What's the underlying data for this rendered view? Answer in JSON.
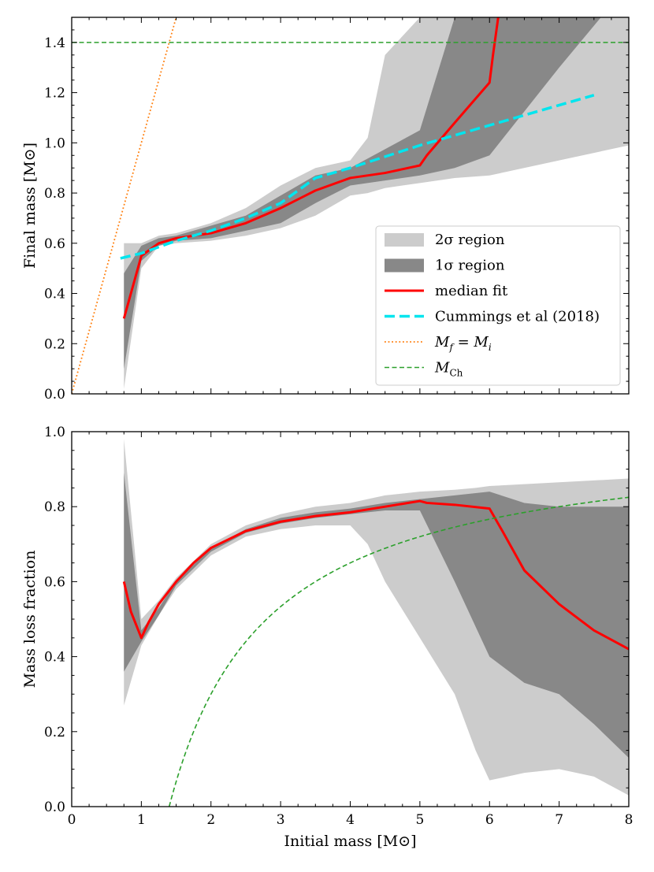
{
  "colors": {
    "band_2sigma": "#cccccc",
    "band_1sigma": "#888888",
    "median": "#ff0000",
    "cummings": "#00e5ee",
    "identity": "#ff7f0e",
    "chandrasekhar": "#2ca02c"
  },
  "legend": {
    "items": [
      {
        "key": "band_2sigma",
        "label": "2σ region"
      },
      {
        "key": "band_1sigma",
        "label": "1σ region"
      },
      {
        "key": "median",
        "label": "median fit"
      },
      {
        "key": "cummings",
        "label": "Cummings et al (2018)"
      },
      {
        "key": "identity",
        "label": "M",
        "sub": "f",
        "rest": " = M",
        "sub2": "i"
      },
      {
        "key": "chandrasekhar",
        "label": "M",
        "sub": "Ch"
      }
    ]
  },
  "chart_data": [
    {
      "type": "line",
      "panel": "top",
      "xlabel": "",
      "ylabel": "Final mass [M⊙]",
      "xlim": [
        0,
        8
      ],
      "ylim": [
        0,
        1.5
      ],
      "xticks": [
        0,
        1,
        2,
        3,
        4,
        5,
        6,
        7,
        8
      ],
      "yticks": [
        0.0,
        0.2,
        0.4,
        0.6,
        0.8,
        1.0,
        1.2,
        1.4
      ],
      "ytick_labels": [
        "0.0",
        "0.2",
        "0.4",
        "0.6",
        "0.8",
        "1.0",
        "1.2",
        "1.4"
      ],
      "series": [
        {
          "name": "2σ region",
          "kind": "band",
          "x": [
            0.75,
            1.0,
            1.25,
            1.5,
            2.0,
            2.5,
            3.0,
            3.5,
            4.0,
            4.25,
            4.5,
            5.0,
            5.5,
            6.0,
            7.0,
            8.0
          ],
          "lower": [
            0.02,
            0.5,
            0.59,
            0.6,
            0.61,
            0.63,
            0.66,
            0.71,
            0.79,
            0.8,
            0.82,
            0.84,
            0.86,
            0.87,
            0.93,
            0.99
          ],
          "upper": [
            0.6,
            0.6,
            0.63,
            0.64,
            0.68,
            0.74,
            0.83,
            0.9,
            0.93,
            1.02,
            1.35,
            1.5,
            1.5,
            1.5,
            1.5,
            1.5
          ]
        },
        {
          "name": "1σ region",
          "kind": "band",
          "x": [
            0.75,
            1.0,
            1.25,
            1.5,
            2.0,
            2.5,
            3.0,
            3.5,
            4.0,
            5.0,
            5.5,
            6.0,
            7.0,
            7.6
          ],
          "lower": [
            0.1,
            0.53,
            0.59,
            0.61,
            0.62,
            0.65,
            0.68,
            0.76,
            0.83,
            0.87,
            0.9,
            0.95,
            1.3,
            1.5
          ],
          "upper": [
            0.48,
            0.59,
            0.62,
            0.63,
            0.67,
            0.71,
            0.79,
            0.87,
            0.9,
            1.05,
            1.5,
            1.5,
            1.5,
            1.5
          ]
        },
        {
          "name": "median fit",
          "kind": "line",
          "x": [
            0.75,
            1.0,
            1.25,
            1.5,
            2.0,
            2.5,
            3.0,
            3.5,
            4.0,
            4.5,
            5.0,
            5.1,
            5.5,
            6.0,
            6.05,
            6.1,
            6.15
          ],
          "y": [
            0.3,
            0.55,
            0.6,
            0.62,
            0.64,
            0.68,
            0.74,
            0.81,
            0.86,
            0.88,
            0.91,
            0.95,
            1.08,
            1.24,
            1.35,
            1.45,
            1.55
          ]
        },
        {
          "name": "Cummings et al (2018)",
          "kind": "line",
          "x": [
            0.7,
            1.0,
            1.5,
            2.0,
            2.5,
            3.0,
            3.5,
            4.0,
            5.0,
            6.0,
            7.5
          ],
          "y": [
            0.54,
            0.56,
            0.61,
            0.65,
            0.7,
            0.76,
            0.86,
            0.9,
            0.99,
            1.07,
            1.19
          ]
        },
        {
          "name": "M_f = M_i",
          "kind": "line",
          "x": [
            0,
            1.5
          ],
          "y": [
            0,
            1.5
          ]
        },
        {
          "name": "M_Ch",
          "kind": "line",
          "x": [
            0,
            8
          ],
          "y": [
            1.4,
            1.4
          ]
        }
      ]
    },
    {
      "type": "line",
      "panel": "bottom",
      "xlabel": "Initial mass [M⊙]",
      "ylabel": "Mass loss fraction",
      "xlim": [
        0,
        8
      ],
      "ylim": [
        0,
        1.0
      ],
      "xticks": [
        0,
        1,
        2,
        3,
        4,
        5,
        6,
        7,
        8
      ],
      "yticks": [
        0.0,
        0.2,
        0.4,
        0.6,
        0.8,
        1.0
      ],
      "ytick_labels": [
        "0.0",
        "0.2",
        "0.4",
        "0.6",
        "0.8",
        "1.0"
      ],
      "series": [
        {
          "name": "2σ region",
          "kind": "band",
          "x": [
            0.75,
            1.0,
            1.25,
            1.5,
            2.0,
            2.5,
            3.0,
            3.5,
            4.0,
            4.25,
            4.5,
            5.0,
            5.5,
            5.8,
            6.0,
            6.5,
            7.0,
            7.5,
            8.0
          ],
          "lower": [
            0.27,
            0.43,
            0.51,
            0.58,
            0.67,
            0.72,
            0.74,
            0.75,
            0.75,
            0.7,
            0.6,
            0.45,
            0.3,
            0.15,
            0.07,
            0.09,
            0.1,
            0.08,
            0.03
          ],
          "upper": [
            0.98,
            0.5,
            0.55,
            0.61,
            0.7,
            0.75,
            0.78,
            0.8,
            0.81,
            0.82,
            0.83,
            0.84,
            0.845,
            0.85,
            0.855,
            0.86,
            0.865,
            0.87,
            0.875
          ]
        },
        {
          "name": "1σ region",
          "kind": "band",
          "x": [
            0.75,
            1.0,
            1.25,
            1.5,
            2.0,
            2.5,
            3.0,
            3.5,
            4.0,
            4.5,
            5.0,
            5.5,
            6.0,
            6.5,
            7.0,
            7.5,
            8.0
          ],
          "lower": [
            0.36,
            0.44,
            0.51,
            0.59,
            0.68,
            0.73,
            0.755,
            0.77,
            0.78,
            0.79,
            0.79,
            0.6,
            0.4,
            0.33,
            0.3,
            0.22,
            0.13
          ],
          "upper": [
            0.89,
            0.47,
            0.53,
            0.6,
            0.69,
            0.74,
            0.77,
            0.785,
            0.795,
            0.81,
            0.82,
            0.83,
            0.84,
            0.81,
            0.8,
            0.8,
            0.8
          ]
        },
        {
          "name": "median fit",
          "kind": "line",
          "x": [
            0.75,
            0.85,
            1.0,
            1.1,
            1.25,
            1.5,
            1.75,
            2.0,
            2.5,
            3.0,
            3.5,
            4.0,
            4.5,
            5.0,
            5.1,
            5.5,
            6.0,
            6.2,
            6.5,
            7.0,
            7.5,
            8.0
          ],
          "y": [
            0.6,
            0.52,
            0.45,
            0.49,
            0.54,
            0.6,
            0.65,
            0.69,
            0.735,
            0.76,
            0.775,
            0.785,
            0.8,
            0.815,
            0.81,
            0.805,
            0.795,
            0.73,
            0.63,
            0.54,
            0.47,
            0.42
          ]
        },
        {
          "name": "M_Ch",
          "kind": "curve",
          "formula": "1 - 1.4/x",
          "x_start": 1.4,
          "x_end": 8.0
        }
      ]
    }
  ]
}
